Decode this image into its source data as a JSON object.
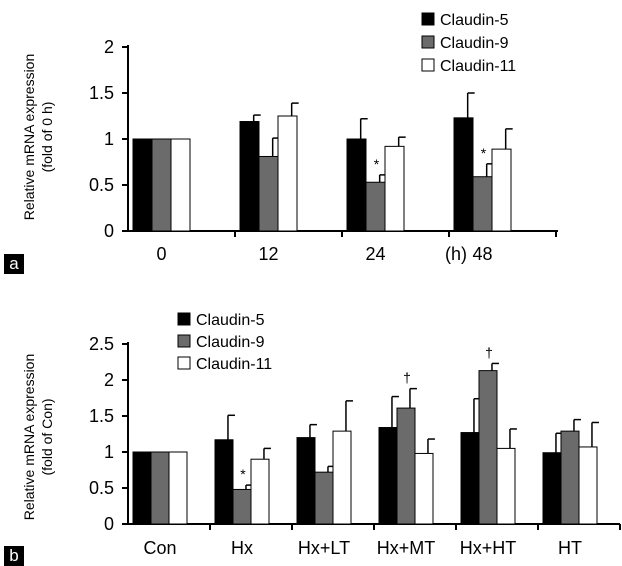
{
  "chart_data": [
    {
      "type": "bar",
      "panel_label": "a",
      "ylabel": "Relative mRNA expression",
      "ylabel2": "(fold of 0 h)",
      "ylim": [
        0,
        2
      ],
      "yticks": [
        "0",
        "0.5",
        "1",
        "1.5",
        "2"
      ],
      "yticks_values": [
        0,
        0.5,
        1,
        1.5,
        2
      ],
      "categories": [
        "0",
        "12",
        "24",
        "48"
      ],
      "x_unit": "(h)",
      "legend_position": "top-right",
      "series": [
        {
          "name": "Claudin-5",
          "color": "#000000",
          "values": [
            1.0,
            1.19,
            1.0,
            1.23
          ],
          "errors": [
            0,
            0.07,
            0.22,
            0.27
          ],
          "marks": [
            "",
            "",
            "",
            ""
          ]
        },
        {
          "name": "Claudin-9",
          "color": "#6b6b6b",
          "values": [
            1.0,
            0.81,
            0.53,
            0.59
          ],
          "errors": [
            0,
            0.2,
            0.08,
            0.14
          ],
          "marks": [
            "",
            "",
            "*",
            "*"
          ]
        },
        {
          "name": "Claudin-11",
          "color": "#ffffff",
          "values": [
            1.0,
            1.25,
            0.92,
            0.89
          ],
          "errors": [
            0,
            0.14,
            0.1,
            0.22
          ],
          "marks": [
            "",
            "",
            "",
            ""
          ]
        }
      ]
    },
    {
      "type": "bar",
      "panel_label": "b",
      "ylabel": "Relative mRNA expression",
      "ylabel2": "(fold of Con)",
      "ylim": [
        0,
        2.5
      ],
      "yticks": [
        "0",
        "0.5",
        "1",
        "1.5",
        "2",
        "2.5"
      ],
      "yticks_values": [
        0,
        0.5,
        1,
        1.5,
        2,
        2.5
      ],
      "categories": [
        "Con",
        "Hx",
        "Hx+LT",
        "Hx+MT",
        "Hx+HT",
        "HT"
      ],
      "x_unit": "",
      "legend_position": "top-left",
      "series": [
        {
          "name": "Claudin-5",
          "color": "#000000",
          "values": [
            1.0,
            1.17,
            1.2,
            1.34,
            1.27,
            0.99
          ],
          "errors": [
            0,
            0.34,
            0.18,
            0.43,
            0.47,
            0.27
          ],
          "marks": [
            "",
            "",
            "",
            "",
            "",
            ""
          ]
        },
        {
          "name": "Claudin-9",
          "color": "#6b6b6b",
          "values": [
            1.0,
            0.48,
            0.72,
            1.61,
            2.13,
            1.29
          ],
          "errors": [
            0,
            0.06,
            0.08,
            0.27,
            0.1,
            0.16
          ],
          "marks": [
            "",
            "*",
            "",
            "†",
            "†",
            ""
          ]
        },
        {
          "name": "Claudin-11",
          "color": "#ffffff",
          "values": [
            1.0,
            0.9,
            1.29,
            0.98,
            1.05,
            1.07
          ],
          "errors": [
            0,
            0.15,
            0.42,
            0.2,
            0.27,
            0.34
          ],
          "marks": [
            "",
            "",
            "",
            "",
            "",
            ""
          ]
        }
      ]
    }
  ]
}
